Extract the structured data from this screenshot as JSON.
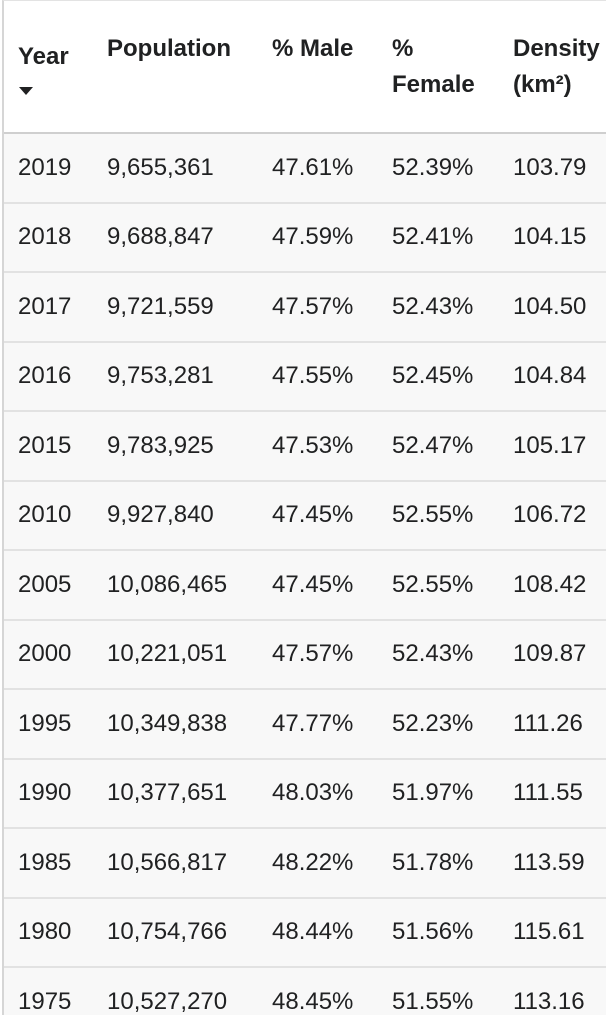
{
  "table": {
    "headers": {
      "year": "Year",
      "population": "Population",
      "male": "% Male",
      "female_line1": "%",
      "female_line2": "Female",
      "density_line1": "Density",
      "density_line2": "(km²)"
    },
    "rows": [
      {
        "year": "2019",
        "population": "9,655,361",
        "male": "47.61%",
        "female": "52.39%",
        "density": "103.79"
      },
      {
        "year": "2018",
        "population": "9,688,847",
        "male": "47.59%",
        "female": "52.41%",
        "density": "104.15"
      },
      {
        "year": "2017",
        "population": "9,721,559",
        "male": "47.57%",
        "female": "52.43%",
        "density": "104.50"
      },
      {
        "year": "2016",
        "population": "9,753,281",
        "male": "47.55%",
        "female": "52.45%",
        "density": "104.84"
      },
      {
        "year": "2015",
        "population": "9,783,925",
        "male": "47.53%",
        "female": "52.47%",
        "density": "105.17"
      },
      {
        "year": "2010",
        "population": "9,927,840",
        "male": "47.45%",
        "female": "52.55%",
        "density": "106.72"
      },
      {
        "year": "2005",
        "population": "10,086,465",
        "male": "47.45%",
        "female": "52.55%",
        "density": "108.42"
      },
      {
        "year": "2000",
        "population": "10,221,051",
        "male": "47.57%",
        "female": "52.43%",
        "density": "109.87"
      },
      {
        "year": "1995",
        "population": "10,349,838",
        "male": "47.77%",
        "female": "52.23%",
        "density": "111.26"
      },
      {
        "year": "1990",
        "population": "10,377,651",
        "male": "48.03%",
        "female": "51.97%",
        "density": "111.55"
      },
      {
        "year": "1985",
        "population": "10,566,817",
        "male": "48.22%",
        "female": "51.78%",
        "density": "113.59"
      },
      {
        "year": "1980",
        "population": "10,754,766",
        "male": "48.44%",
        "female": "51.56%",
        "density": "115.61"
      },
      {
        "year": "1975",
        "population": "10,527,270",
        "male": "48.45%",
        "female": "51.55%",
        "density": "113.16"
      }
    ]
  },
  "icons": {
    "sort": "sort-descending-icon"
  }
}
